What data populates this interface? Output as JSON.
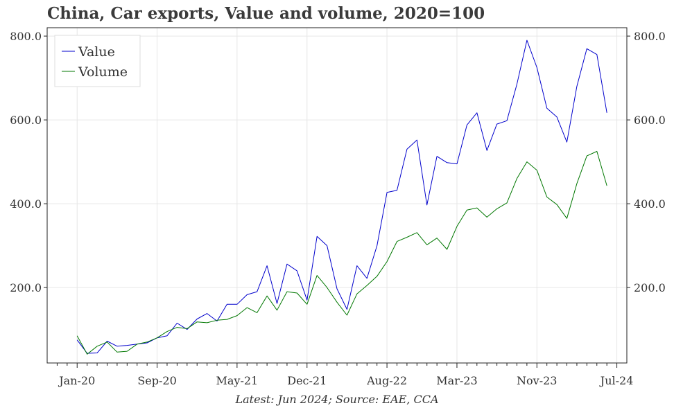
{
  "chart_data": {
    "type": "line",
    "title": "China, Car exports, Value and volume, 2020=100",
    "footnote": "Latest: Jun 2024; Source: EAE, CCA",
    "xlabel": "",
    "ylabel": "",
    "ylim": [
      20,
      820
    ],
    "y_ticks": [
      200,
      400,
      600,
      800
    ],
    "y_tick_labels": [
      "200.0",
      "400.0",
      "600.0",
      "800.0"
    ],
    "x_tick_labels": [
      "Jan-20",
      "Sep-20",
      "May-21",
      "Dec-21",
      "Aug-22",
      "Mar-23",
      "Nov-23",
      "Jul-24"
    ],
    "x_tick_index": [
      0,
      8,
      16,
      23,
      31,
      38,
      46,
      54
    ],
    "x_start_index": -3,
    "x_end_index": 55,
    "legend": [
      "Value",
      "Volume"
    ],
    "legend_position": "top-left",
    "series": [
      {
        "name": "Value",
        "color": "#0000cc",
        "values": [
          75,
          43,
          44,
          72,
          60,
          62,
          65,
          68,
          80,
          85,
          115,
          100,
          125,
          138,
          120,
          160,
          160,
          183,
          190,
          252,
          162,
          256,
          240,
          170,
          322,
          300,
          197,
          148,
          252,
          222,
          300,
          427,
          432,
          530,
          552,
          397,
          513,
          498,
          495,
          588,
          617,
          527,
          590,
          598,
          685,
          790,
          725,
          628,
          607,
          547,
          680,
          770,
          756,
          617
        ]
      },
      {
        "name": "Volume",
        "color": "#007700",
        "values": [
          85,
          41,
          60,
          70,
          46,
          48,
          65,
          70,
          80,
          95,
          105,
          102,
          118,
          116,
          122,
          124,
          133,
          152,
          140,
          180,
          146,
          190,
          187,
          160,
          229,
          200,
          165,
          134,
          185,
          205,
          227,
          262,
          310,
          320,
          331,
          302,
          318,
          291,
          346,
          385,
          390,
          368,
          388,
          402,
          460,
          500,
          480,
          416,
          398,
          365,
          448,
          514,
          525,
          443
        ]
      }
    ]
  }
}
